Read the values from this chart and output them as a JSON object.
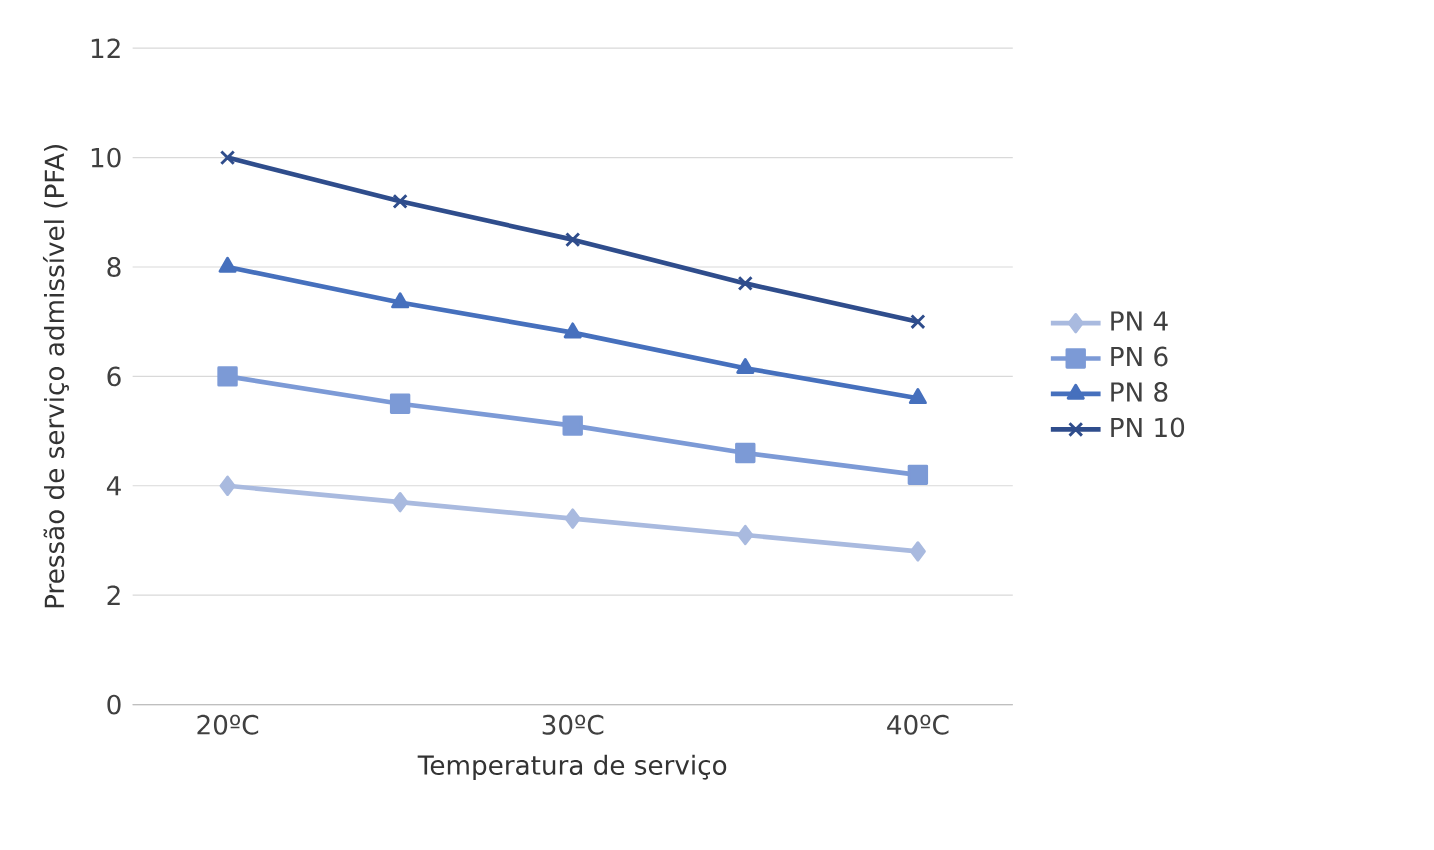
{
  "chart_data": {
    "type": "line",
    "xlabel": "Temperatura de serviço",
    "ylabel": "Pressão de serviço admissível (PFA)",
    "categories": [
      "20ºC",
      null,
      "30ºC",
      null,
      "40ºC"
    ],
    "series": [
      {
        "name": "PN 4",
        "color": "#a9badf",
        "marker": "diamond",
        "values": [
          4,
          3.7,
          3.4,
          3.1,
          2.8
        ]
      },
      {
        "name": "PN 6",
        "color": "#7c9ad6",
        "marker": "square",
        "values": [
          6,
          5.5,
          5.1,
          4.6,
          4.2
        ]
      },
      {
        "name": "PN 8",
        "color": "#4670bd",
        "marker": "triangle",
        "values": [
          8,
          7.35,
          6.8,
          6.15,
          5.6
        ]
      },
      {
        "name": "PN 10",
        "color": "#2f4d8c",
        "marker": "cross",
        "values": [
          10,
          9.2,
          8.5,
          7.7,
          7
        ]
      }
    ],
    "ylim": [
      0,
      12
    ],
    "yticks": [
      0,
      2,
      4,
      6,
      8,
      10,
      12
    ],
    "grid": "y",
    "legend": "right",
    "line_style": "solid"
  }
}
